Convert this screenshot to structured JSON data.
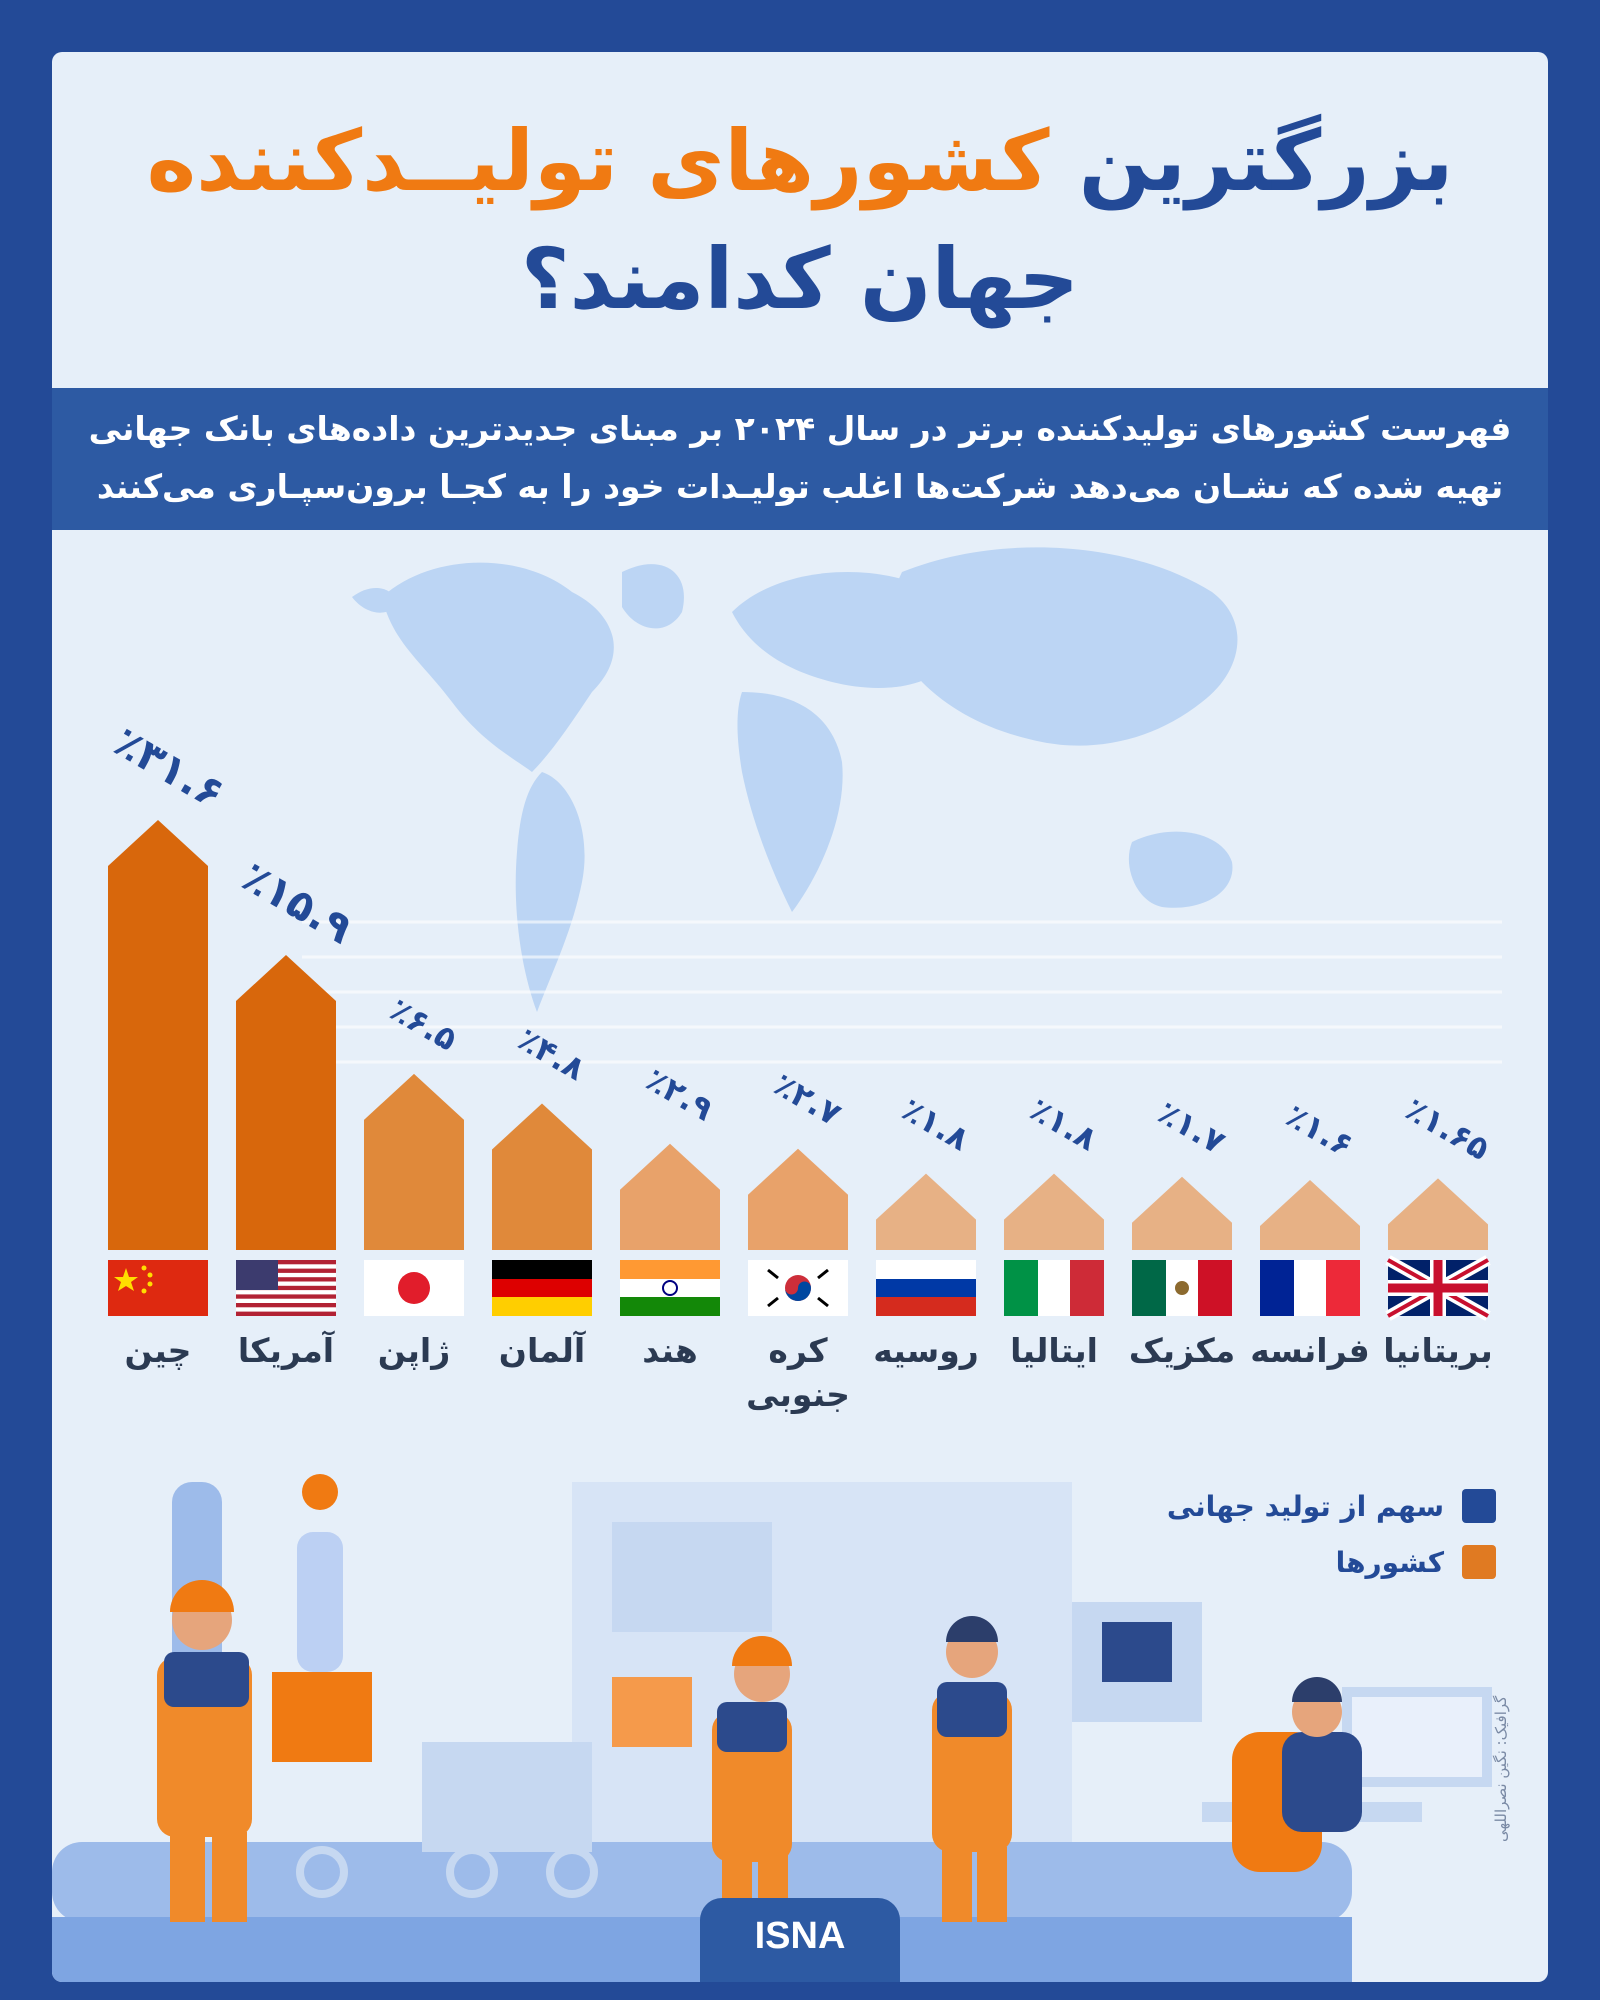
{
  "title": {
    "part1": "بزرگترین",
    "accent": "کشورهای تولیــدکننده",
    "line2": "جهان کدامند؟"
  },
  "subtitle": {
    "line1": "فهرست کشورهای تولیدکننده برتر در سال ۲۰۲۴ بر مبنای جدیدترین داده‌های بانک جهانی",
    "line2": "تهیه شده که نشـان می‌دهد شرکت‌ها اغلب تولیـدات خود را به کجـا برون‌سپـاری می‌کنند"
  },
  "colors": {
    "navy": "#234a97",
    "orange": "#f07a12",
    "bar_dark": "#d8670c",
    "bar_mid": "#e0893a",
    "bar_light": "#e8a26a",
    "bar_pale": "#e7b185",
    "map": "#b9d3f3"
  },
  "chart_data": {
    "type": "bar",
    "categories": [
      "چین",
      "آمریکا",
      "ژاپن",
      "آلمان",
      "هند",
      "کره جنوبی",
      "روسیه",
      "ایتالیا",
      "مکزیک",
      "فرانسه",
      "بریتانیا"
    ],
    "values": [
      31.6,
      15.9,
      6.5,
      4.8,
      2.9,
      2.7,
      1.8,
      1.8,
      1.7,
      1.6,
      1.65
    ],
    "value_labels": [
      "٪۳۱.۶",
      "٪۱۵.۹",
      "٪۶.۵",
      "٪۴.۸",
      "٪۲.۹",
      "٪۲.۷",
      "٪۱.۸",
      "٪۱.۸",
      "٪۱.۷",
      "٪۱.۶",
      "٪۱.۶۵"
    ],
    "flags": [
      "china-flag",
      "usa-flag",
      "japan-flag",
      "germany-flag",
      "india-flag",
      "south-korea-flag",
      "russia-flag",
      "italy-flag",
      "mexico-flag",
      "france-flag",
      "uk-flag"
    ],
    "legend": [
      {
        "label": "سهم از تولید جهانی",
        "color": "#234a97"
      },
      {
        "label": "کشورها",
        "color": "#e07a22"
      }
    ],
    "legend_position": "bottom-right"
  },
  "footer": {
    "brand": "ISNA",
    "credit": "گرافیک: نگین نصراللهی"
  }
}
